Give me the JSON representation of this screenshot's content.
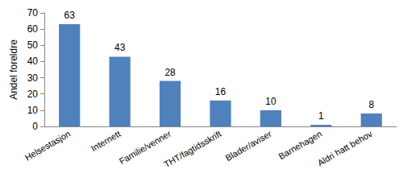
{
  "chart_data": {
    "type": "bar",
    "y_label": "Andel foreldre",
    "categories": [
      "Helsestasjon",
      "Internett",
      "Familie/venner",
      "THT/fagtidsskrift",
      "Blader/aviser",
      "Barnehagen",
      "Aldri hatt behov"
    ],
    "values": [
      63,
      43,
      28,
      16,
      10,
      1,
      8
    ],
    "color": "#4f81bd",
    "ylim": [
      0,
      70
    ],
    "yticks": [
      0,
      10,
      20,
      30,
      40,
      50,
      60,
      70
    ],
    "grid": false,
    "data_labels": true
  }
}
